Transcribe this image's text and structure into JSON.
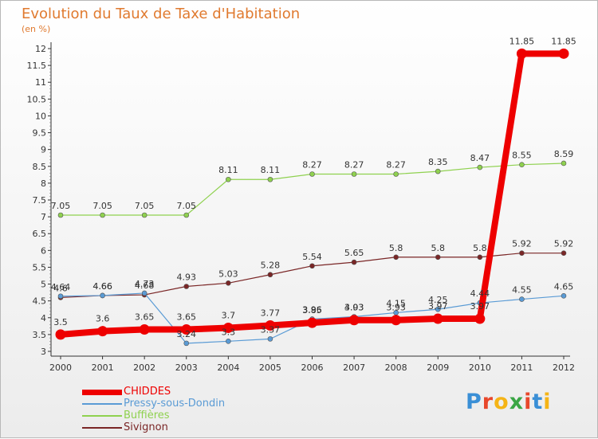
{
  "title": "Evolution du Taux de Taxe d'Habitation",
  "unit": "(en %)",
  "logo": {
    "text": "Proxiti",
    "letter_colors": [
      "#3a8fd6",
      "#e8472b",
      "#f5b416",
      "#3aa645",
      "#e8472b",
      "#3a8fd6",
      "#f5b416"
    ]
  },
  "chart_data": {
    "type": "line",
    "title": "Evolution du Taux de Taxe d'Habitation",
    "ylabel": "(en %)",
    "xlabel": "",
    "x": [
      "2000",
      "2001",
      "2002",
      "2003",
      "2004",
      "2005",
      "2006",
      "2007",
      "2008",
      "2009",
      "2010",
      "2011",
      "2012"
    ],
    "ylim": [
      3,
      12
    ],
    "yticks": [
      "3",
      "3.5",
      "4",
      "4.5",
      "5",
      "5.5",
      "6",
      "6.5",
      "7",
      "7.5",
      "8",
      "8.5",
      "9",
      "9.5",
      "10",
      "10.5",
      "11",
      "11.5",
      "12"
    ],
    "grid": false,
    "legend_position": "bottom-left",
    "series": [
      {
        "name": "CHIDDES",
        "color": "#ee0000",
        "width": 8,
        "values": [
          3.5,
          3.6,
          3.65,
          3.65,
          3.7,
          3.77,
          3.85,
          3.93,
          3.93,
          3.97,
          3.97,
          11.85,
          11.85
        ],
        "labels": [
          "3.5",
          "3.6",
          "3.65",
          "3.65",
          "3.7",
          "3.77",
          "3.85",
          "3.93",
          "3.93",
          "3.97",
          "3.97",
          "11.85",
          "11.85"
        ]
      },
      {
        "name": "Pressy-sous-Dondin",
        "color": "#5a9bd5",
        "width": 1.2,
        "values": [
          4.64,
          4.66,
          4.73,
          3.24,
          3.3,
          3.37,
          3.96,
          4.03,
          4.15,
          4.25,
          4.44,
          4.55,
          4.65
        ],
        "labels": [
          "4.64",
          "4.66",
          "4.73",
          "3.24",
          "3.3",
          "3.37",
          "3.96",
          "4.03",
          "4.15",
          "4.25",
          "4.44",
          "4.55",
          "4.65"
        ]
      },
      {
        "name": "Buffières",
        "color": "#8fd14f",
        "width": 1.2,
        "values": [
          7.05,
          7.05,
          7.05,
          7.05,
          8.11,
          8.11,
          8.27,
          8.27,
          8.27,
          8.35,
          8.47,
          8.55,
          8.59
        ],
        "labels": [
          "7.05",
          "7.05",
          "7.05",
          "7.05",
          "8.11",
          "8.11",
          "8.27",
          "8.27",
          "8.27",
          "8.35",
          "8.47",
          "8.55",
          "8.59"
        ]
      },
      {
        "name": "Sivignon",
        "color": "#7a2626",
        "width": 1.2,
        "values": [
          4.6,
          4.66,
          4.68,
          4.93,
          5.03,
          5.28,
          5.54,
          5.65,
          5.8,
          5.8,
          5.8,
          5.92,
          5.92
        ],
        "labels": [
          "4.6",
          "4.66",
          "4.68",
          "4.93",
          "5.03",
          "5.28",
          "5.54",
          "5.65",
          "5.8",
          "5.8",
          "5.8",
          "5.92",
          "5.92"
        ]
      }
    ]
  }
}
